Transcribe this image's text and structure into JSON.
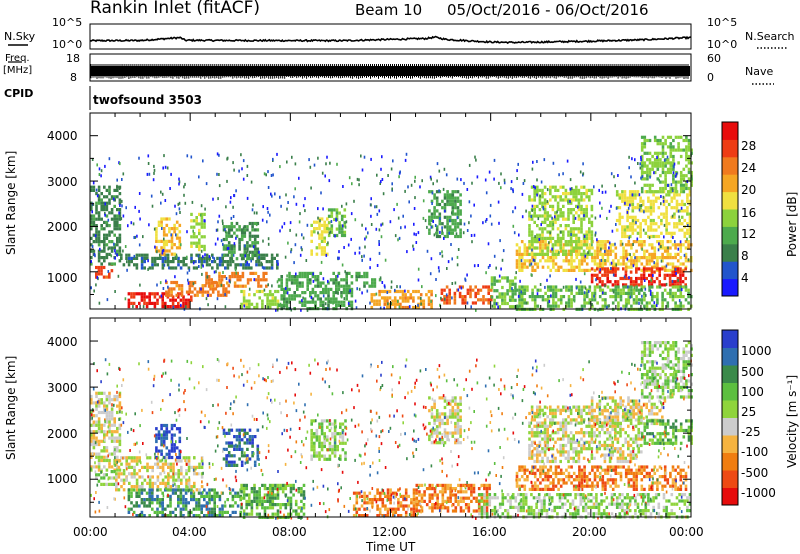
{
  "header": {
    "station": "Rankin Inlet (fitACF)",
    "beam": "Beam 10",
    "date_range": "05/Oct/2016 - 06/Oct/2016"
  },
  "side_labels": {
    "nsky": "N.Sky",
    "freq": "Freq.",
    "mhz": "[MHz]",
    "cpid": "CPID",
    "nsearch": "N.Search",
    "nave": "Nave",
    "cpid_value": "twofsound 3503"
  },
  "chart_data": [
    {
      "type": "line",
      "panel": "noise",
      "left_ticks": [
        "10^5",
        "10^0"
      ],
      "right_ticks": [
        "10^5",
        "10^0"
      ],
      "series": [
        {
          "name": "N.Sky",
          "style": "solid"
        },
        {
          "name": "N.Search",
          "style": "dotted"
        }
      ],
      "x_hours": [
        0,
        2,
        3.6,
        3.8,
        6,
        10,
        13.4,
        13.8,
        14.2,
        16,
        17,
        20,
        22,
        24
      ],
      "y_log": [
        1.2,
        1.25,
        1.9,
        1.3,
        1.25,
        1.2,
        1.7,
        2.0,
        1.5,
        0.9,
        0.8,
        1.1,
        1.4,
        1.9
      ]
    },
    {
      "type": "line",
      "panel": "freq_nave",
      "left_ticks": [
        "18",
        "8"
      ],
      "right_ticks": [
        "60",
        "0"
      ],
      "ylabel": "Freq. [MHz]",
      "y2label": "Nave",
      "note": "frequency alternates between ~10.5 and ~12 MHz (twofsound), dense band"
    },
    {
      "type": "heatmap",
      "title": "Power",
      "xlabel": "Time UT",
      "ylabel": "Slant Range [km]",
      "x_ticks": [
        "00:00",
        "04:00",
        "08:00",
        "12:00",
        "16:00",
        "20:00",
        "00:00"
      ],
      "y_ticks": [
        "1000",
        "2000",
        "3000",
        "4000"
      ],
      "xlim_hours": [
        0,
        24
      ],
      "ylim_km": [
        180,
        4500
      ],
      "colorbar": {
        "label": "Power [dB]",
        "ticks": [
          "4",
          "8",
          "12",
          "16",
          "20",
          "24",
          "28"
        ],
        "range": [
          0,
          30
        ],
        "colors": [
          "#1a1aff",
          "#2255cc",
          "#3a7f4a",
          "#4daa4d",
          "#8cd23c",
          "#f0e040",
          "#f5a623",
          "#f07a1e",
          "#ee3c14",
          "#e80c0c"
        ]
      },
      "blobs": [
        {
          "t0": 0.2,
          "t1": 0.9,
          "r0": 900,
          "r1": 1200,
          "v": 25
        },
        {
          "t0": 0.0,
          "t1": 1.2,
          "r0": 1200,
          "r1": 2900,
          "v": 8
        },
        {
          "t0": 1.2,
          "t1": 7.5,
          "r0": 1100,
          "r1": 1400,
          "v": 7
        },
        {
          "t0": 1.5,
          "t1": 4.0,
          "r0": 200,
          "r1": 550,
          "v": 27
        },
        {
          "t0": 3.0,
          "t1": 5.5,
          "r0": 500,
          "r1": 800,
          "v": 22
        },
        {
          "t0": 2.6,
          "t1": 3.6,
          "r0": 1400,
          "r1": 2200,
          "v": 18
        },
        {
          "t0": 4.0,
          "t1": 4.6,
          "r0": 1500,
          "r1": 2300,
          "v": 14
        },
        {
          "t0": 4.6,
          "t1": 7.0,
          "r0": 700,
          "r1": 1000,
          "v": 22
        },
        {
          "t0": 6.0,
          "t1": 7.5,
          "r0": 200,
          "r1": 600,
          "v": 14
        },
        {
          "t0": 5.3,
          "t1": 6.7,
          "r0": 1300,
          "r1": 2100,
          "v": 9
        },
        {
          "t0": 8.8,
          "t1": 9.5,
          "r0": 1400,
          "r1": 2200,
          "v": 16
        },
        {
          "t0": 9.5,
          "t1": 10.2,
          "r0": 1800,
          "r1": 2400,
          "v": 12
        },
        {
          "t0": 7.5,
          "t1": 10.5,
          "r0": 180,
          "r1": 1000,
          "v": 10
        },
        {
          "t0": 10.6,
          "t1": 11.6,
          "r0": 700,
          "r1": 1000,
          "v": 10
        },
        {
          "t0": 11.2,
          "t1": 13.6,
          "r0": 200,
          "r1": 600,
          "v": 20
        },
        {
          "t0": 13.5,
          "t1": 14.8,
          "r0": 1800,
          "r1": 2800,
          "v": 10
        },
        {
          "t0": 14.0,
          "t1": 16.0,
          "r0": 300,
          "r1": 700,
          "v": 24
        },
        {
          "t0": 16.0,
          "t1": 17.0,
          "r0": 200,
          "r1": 900,
          "v": 12
        },
        {
          "t0": 17.0,
          "t1": 24.0,
          "r0": 1000,
          "r1": 1700,
          "v": 18
        },
        {
          "t0": 17.5,
          "t1": 20.0,
          "r0": 1400,
          "r1": 2900,
          "v": 14
        },
        {
          "t0": 20.0,
          "t1": 23.8,
          "r0": 700,
          "r1": 1100,
          "v": 27
        },
        {
          "t0": 21.0,
          "t1": 24.0,
          "r0": 1800,
          "r1": 2800,
          "v": 16
        },
        {
          "t0": 22.0,
          "t1": 24.0,
          "r0": 2800,
          "r1": 4000,
          "v": 13
        },
        {
          "t0": 17.0,
          "t1": 24.0,
          "r0": 200,
          "r1": 700,
          "v": 12
        }
      ]
    },
    {
      "type": "heatmap",
      "title": "Velocity",
      "xlabel": "Time UT",
      "ylabel": "Slant Range [km]",
      "x_ticks": [
        "00:00",
        "04:00",
        "08:00",
        "12:00",
        "16:00",
        "20:00",
        "00:00"
      ],
      "y_ticks": [
        "1000",
        "2000",
        "3000",
        "4000"
      ],
      "xlim_hours": [
        0,
        24
      ],
      "ylim_km": [
        180,
        4500
      ],
      "colorbar": {
        "label": "Velocity [m s⁻¹]",
        "ticks": [
          "1000",
          "500",
          "100",
          "25",
          "-25",
          "-100",
          "-500",
          "-1000"
        ],
        "colors": [
          "#2a3fcc",
          "#2f6fb0",
          "#3a8a4a",
          "#5cbf40",
          "#8fd43c",
          "#cccccc",
          "#f5b340",
          "#f07d10",
          "#ee4a14",
          "#e60c0c"
        ]
      },
      "blobs": [
        {
          "t0": 0.0,
          "t1": 1.2,
          "r0": 1200,
          "r1": 2900,
          "v": 5
        },
        {
          "t0": 0.2,
          "t1": 1.0,
          "r0": 900,
          "r1": 1200,
          "v": 4
        },
        {
          "t0": 1.0,
          "t1": 4.5,
          "r0": 800,
          "r1": 1500,
          "v": 5
        },
        {
          "t0": 1.5,
          "t1": 6.0,
          "r0": 200,
          "r1": 800,
          "v": 2
        },
        {
          "t0": 2.6,
          "t1": 3.6,
          "r0": 1500,
          "r1": 2200,
          "v": 0
        },
        {
          "t0": 5.3,
          "t1": 6.7,
          "r0": 1300,
          "r1": 2100,
          "v": 1
        },
        {
          "t0": 6.0,
          "t1": 8.5,
          "r0": 200,
          "r1": 900,
          "v": 3
        },
        {
          "t0": 8.8,
          "t1": 10.2,
          "r0": 1400,
          "r1": 2300,
          "v": 4
        },
        {
          "t0": 10.5,
          "t1": 13.0,
          "r0": 200,
          "r1": 800,
          "v": 7
        },
        {
          "t0": 13.0,
          "t1": 16.0,
          "r0": 300,
          "r1": 900,
          "v": 7
        },
        {
          "t0": 13.5,
          "t1": 14.8,
          "r0": 1800,
          "r1": 2800,
          "v": 5
        },
        {
          "t0": 17.0,
          "t1": 23.8,
          "r0": 800,
          "r1": 1300,
          "v": 7
        },
        {
          "t0": 17.5,
          "t1": 22.0,
          "r0": 1400,
          "r1": 2600,
          "v": 5
        },
        {
          "t0": 20.0,
          "t1": 23.0,
          "r0": 2200,
          "r1": 2800,
          "v": 5
        },
        {
          "t0": 22.0,
          "t1": 24.0,
          "r0": 1800,
          "r1": 2300,
          "v": 3
        },
        {
          "t0": 22.0,
          "t1": 24.0,
          "r0": 2800,
          "r1": 4000,
          "v": 4
        },
        {
          "t0": 15.5,
          "t1": 24.0,
          "r0": 200,
          "r1": 700,
          "v": 4
        }
      ]
    }
  ]
}
